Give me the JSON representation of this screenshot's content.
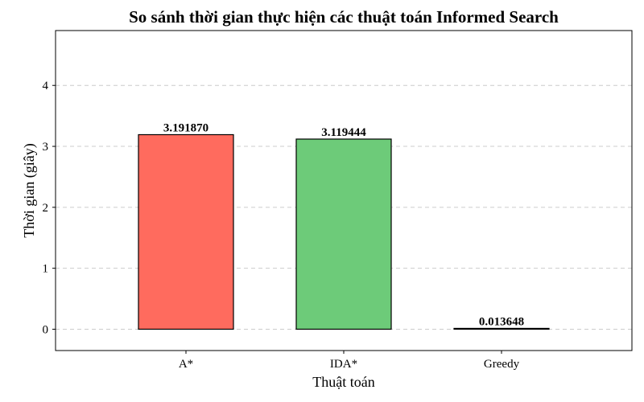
{
  "chart_data": {
    "type": "bar",
    "title": "So sánh thời gian thực hiện các thuật toán Informed Search",
    "xlabel": "Thuật toán",
    "ylabel": "Thời gian (giây)",
    "categories": [
      "A*",
      "IDA*",
      "Greedy"
    ],
    "values": [
      3.19187,
      3.119444,
      0.013648
    ],
    "value_labels": [
      "3.191870",
      "3.119444",
      "0.013648"
    ],
    "colors": [
      "#ff6b5e",
      "#6dcb79",
      "#6dcb79"
    ],
    "ylim": [
      -0.35,
      4.9
    ],
    "yticks": [
      0,
      1,
      2,
      3,
      4
    ],
    "grid": true,
    "grid_axis": "y"
  }
}
